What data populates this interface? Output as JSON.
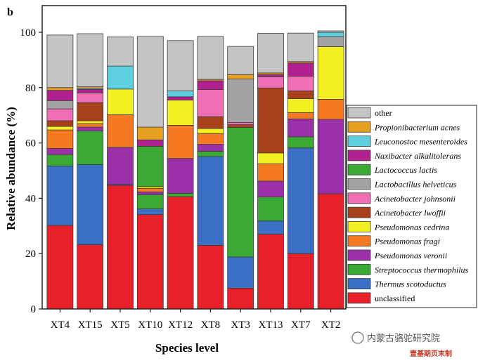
{
  "panel_label": "b",
  "watermark": {
    "main": "内蒙古骆驼研究院",
    "sub": "壹基期页末制"
  },
  "chart_data": {
    "type": "bar",
    "stacked": true,
    "xlabel": "Species level",
    "ylabel": "Relative abundance (%)",
    "ylim": [
      0,
      100
    ],
    "yticks": [
      0,
      20,
      40,
      60,
      80,
      100
    ],
    "legend_position": "right",
    "categories": [
      "XT4",
      "XT15",
      "XT5",
      "XT10",
      "XT12",
      "XT8",
      "XT3",
      "XT13",
      "XT7",
      "XT2"
    ],
    "series": [
      {
        "name": "unclassified",
        "color": "#e8202a",
        "values": [
          30.2,
          23.2,
          44.7,
          34.1,
          40.6,
          23.0,
          7.5,
          27.0,
          20.0,
          41.6
        ]
      },
      {
        "name": "Thermus scotoductus",
        "color": "#3a6fc4",
        "values": [
          21.5,
          29.0,
          0.3,
          2.1,
          0,
          32.1,
          11.3,
          4.8,
          38.2,
          0
        ]
      },
      {
        "name": "Streptococcus thermophilus",
        "color": "#3aaa35",
        "values": [
          4.1,
          12.1,
          0,
          5.1,
          1.2,
          1.9,
          46.8,
          8.7,
          4.0,
          0
        ]
      },
      {
        "name": "Pseudomonas veronii",
        "color": "#9b30a8",
        "values": [
          2.2,
          1.4,
          13.4,
          1.0,
          12.6,
          2.5,
          0,
          5.7,
          6.5,
          26.9
        ]
      },
      {
        "name": "Pseudomonas fragi",
        "color": "#f47920",
        "values": [
          6.7,
          1.3,
          11.8,
          1.3,
          12.0,
          3.9,
          0,
          6.3,
          2.3,
          7.3
        ]
      },
      {
        "name": "Pseudomonas cedrina",
        "color": "#f4ef20",
        "values": [
          1.3,
          1.0,
          9.3,
          0.6,
          9.1,
          1.8,
          0,
          3.9,
          5.0,
          19.0
        ]
      },
      {
        "name": "Acinetobacter lwoffii",
        "color": "#a8401c",
        "values": [
          2.0,
          6.6,
          0,
          0,
          0,
          4.3,
          1.0,
          23.5,
          2.8,
          0
        ]
      },
      {
        "name": "Acinetobacter johnsonii",
        "color": "#f06eb4",
        "values": [
          4.3,
          3.5,
          0,
          0,
          0,
          9.8,
          0.8,
          4.0,
          5.3,
          0
        ]
      },
      {
        "name": "Lactobacillus helveticus",
        "color": "#a3a3a3",
        "values": [
          3.0,
          0,
          0,
          0,
          0,
          0,
          15.7,
          0,
          0,
          3.6
        ]
      },
      {
        "name": "Lactococcus lactis",
        "color": "#3aaa35",
        "values": [
          0,
          0,
          0,
          14.6,
          0,
          0,
          0,
          0,
          0,
          0
        ]
      },
      {
        "name": "Naxibacter alkalitolerans",
        "color": "#b0218f",
        "values": [
          3.7,
          1.3,
          0,
          2.3,
          1.2,
          3.2,
          0,
          0.8,
          4.8,
          0
        ]
      },
      {
        "name": "Leuconostoc mesenteroides",
        "color": "#5ecfdf",
        "values": [
          0,
          0.4,
          8.3,
          0,
          2.1,
          0,
          0,
          0,
          0,
          1.6
        ]
      },
      {
        "name": "Propionibacterium acnes",
        "color": "#e8a020",
        "values": [
          1.0,
          0.5,
          0,
          4.6,
          0,
          0.5,
          1.6,
          0.6,
          0.5,
          0
        ]
      },
      {
        "name": "other",
        "color": "#c4c4c4",
        "values": [
          19.0,
          19.2,
          10.5,
          32.8,
          18.2,
          15.5,
          10.2,
          14.3,
          10.3,
          0.5
        ]
      }
    ]
  }
}
